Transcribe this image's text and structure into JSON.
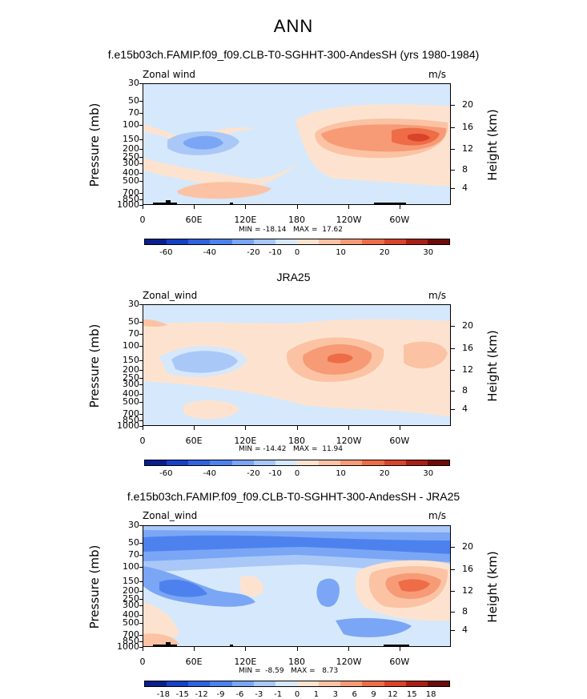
{
  "title": "ANN",
  "panels": [
    {
      "title": "f.e15b03ch.FAMIP.f09_f09.CLB-T0-SGHHT-300-AndesSH (yrs 1980-1984)",
      "left_label": "Zonal wind",
      "right_label": "m/s",
      "min_max": "MIN = -18.14   MAX =  17.62",
      "colorbar_labels": [
        "-60",
        "-40",
        "-20",
        "-10",
        "0",
        "10",
        "20",
        "30"
      ]
    },
    {
      "title": "JRA25",
      "left_label": "Zonal_wind",
      "right_label": "m/s",
      "min_max": "MIN = -14.42   MAX =  11.94",
      "colorbar_labels": [
        "-60",
        "-40",
        "-20",
        "-10",
        "0",
        "10",
        "20",
        "30"
      ]
    },
    {
      "title": "f.e15b03ch.FAMIP.f09_f09.CLB-T0-SGHHT-300-AndesSH - JRA25",
      "left_label": "Zonal_wind",
      "right_label": "m/s",
      "min_max": "MIN =  -8.59   MAX =   8.73",
      "colorbar_labels": [
        "-18",
        "-15",
        "-12",
        "-9",
        "-6",
        "-3",
        "-1",
        "0",
        "1",
        "3",
        "6",
        "9",
        "12",
        "15",
        "18"
      ]
    }
  ],
  "axes": {
    "ylabel_left": "Pressure (mb)",
    "ylabel_right": "Height (km)",
    "pressure_ticks": [
      "30",
      "50",
      "70",
      "100",
      "150",
      "200",
      "250",
      "300",
      "400",
      "500",
      "700",
      "850",
      "1000"
    ],
    "height_ticks": [
      "20",
      "16",
      "12",
      "8",
      "4"
    ],
    "lon_ticks": [
      "0",
      "60E",
      "120E",
      "180",
      "120W",
      "60W"
    ]
  },
  "colors": {
    "scale": [
      "#0a1f8f",
      "#1740c8",
      "#2f62e0",
      "#4d82ee",
      "#7aa6f5",
      "#a9c8f8",
      "#d6e8fb",
      "#fde3cf",
      "#fbc3a3",
      "#f69b76",
      "#ee6c47",
      "#d9432a",
      "#aa1f15",
      "#6e0a08"
    ]
  },
  "chart_data": {
    "type": "heatmap",
    "xlabel": "",
    "ylabel": "Pressure (mb)",
    "y2label": "Height (km)",
    "x_range": [
      "0",
      "360"
    ],
    "y_range_mb": [
      1000,
      30
    ],
    "series": [
      {
        "name": "f.e15b03ch.FAMIP.f09_f09.CLB-T0-SGHHT-300-AndesSH (yrs 1980-1984)",
        "min": -18.14,
        "max": 17.62
      },
      {
        "name": "JRA25",
        "min": -14.42,
        "max": 11.94
      },
      {
        "name": "f.e15b03ch.FAMIP.f09_f09.CLB-T0-SGHHT-300-AndesSH - JRA25",
        "min": -8.59,
        "max": 8.73
      }
    ]
  }
}
